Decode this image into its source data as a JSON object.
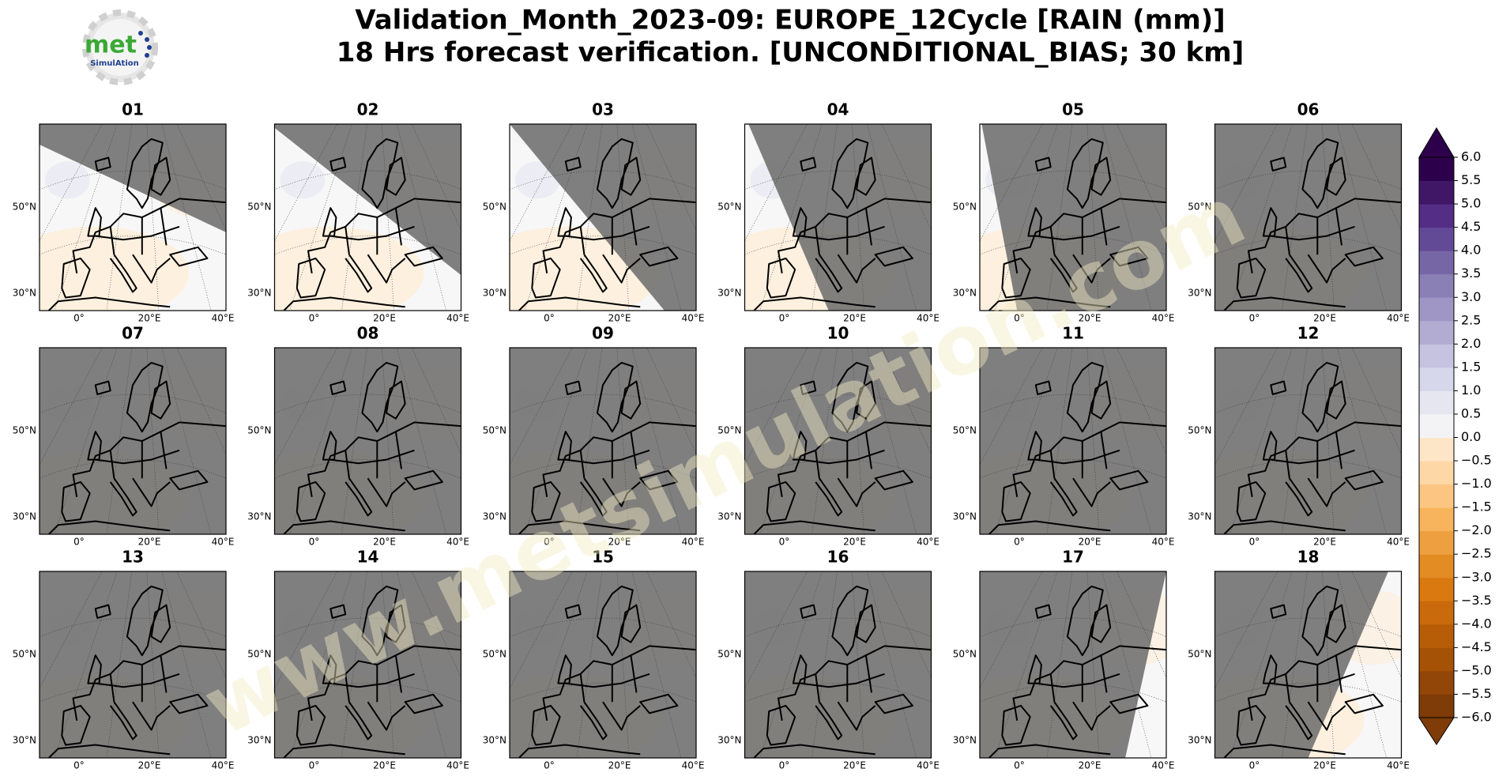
{
  "title": [
    "Validation_Month_2023-09: EUROPE_12Cycle [RAIN (mm)]",
    "18 Hrs forecast verification. [UNCONDITIONAL_BIAS; 30 km]"
  ],
  "logo": {
    "name": "met",
    "subtitle": "SimulAtion"
  },
  "watermark": "www.metsimulation.com",
  "lat_labels": [
    "50°N",
    "30°N"
  ],
  "lon_labels": [
    "0°",
    "20°E",
    "40°E"
  ],
  "panels": [
    "01",
    "02",
    "03",
    "04",
    "05",
    "06",
    "07",
    "08",
    "09",
    "10",
    "11",
    "12",
    "13",
    "14",
    "15",
    "16",
    "17",
    "18"
  ],
  "colorbar": {
    "type": "colorbar",
    "lim": [
      -6,
      6
    ],
    "ticks": [
      {
        "value": 6,
        "label": "6.0"
      },
      {
        "value": 5.5,
        "label": "5.5"
      },
      {
        "value": 5,
        "label": "5.0"
      },
      {
        "value": 4.5,
        "label": "4.5"
      },
      {
        "value": 4,
        "label": "4.0"
      },
      {
        "value": 3.5,
        "label": "3.5"
      },
      {
        "value": 3,
        "label": "3.0"
      },
      {
        "value": 2.5,
        "label": "2.5"
      },
      {
        "value": 2,
        "label": "2.0"
      },
      {
        "value": 1.5,
        "label": "1.5"
      },
      {
        "value": 1,
        "label": "1.0"
      },
      {
        "value": 0.5,
        "label": "0.5"
      },
      {
        "value": 0,
        "label": "0.0"
      },
      {
        "value": -0.5,
        "label": "−0.5"
      },
      {
        "value": -1,
        "label": "−1.0"
      },
      {
        "value": -1.5,
        "label": "−1.5"
      },
      {
        "value": -2,
        "label": "−2.0"
      },
      {
        "value": -2.5,
        "label": "−2.5"
      },
      {
        "value": -3,
        "label": "−3.0"
      },
      {
        "value": -3.5,
        "label": "−3.5"
      },
      {
        "value": -4,
        "label": "−4.0"
      },
      {
        "value": -4.5,
        "label": "−4.5"
      },
      {
        "value": -5,
        "label": "−5.0"
      },
      {
        "value": -5.5,
        "label": "−5.5"
      },
      {
        "value": -6,
        "label": "−6.0"
      }
    ],
    "colors": [
      "#7f3b08",
      "#924607",
      "#a65206",
      "#b85d07",
      "#c96a0c",
      "#d97910",
      "#e38c24",
      "#eea041",
      "#f8b45c",
      "#fcc682",
      "#fdd7a6",
      "#fde6c8",
      "#f3f3f5",
      "#e6e6f1",
      "#d6d7ea",
      "#c6c3e0",
      "#b2abd2",
      "#9f96c5",
      "#8a80b6",
      "#7766a6",
      "#634a96",
      "#532d86",
      "#401767",
      "#2d004b"
    ],
    "under_color": "#7f3b08",
    "over_color": "#2d004b"
  }
}
